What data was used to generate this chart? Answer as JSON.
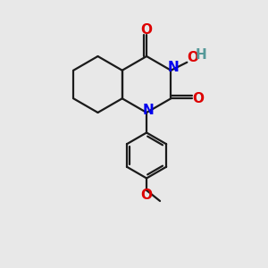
{
  "bg_color": "#e8e8e8",
  "bond_color": "#1a1a1a",
  "N_color": "#0000ee",
  "O_color": "#dd0000",
  "H_color": "#559999",
  "lw": 1.6,
  "fs": 11,
  "fig_size": [
    3.0,
    3.0
  ],
  "dpi": 100,
  "xlim": [
    0,
    10
  ],
  "ylim": [
    0,
    10
  ]
}
